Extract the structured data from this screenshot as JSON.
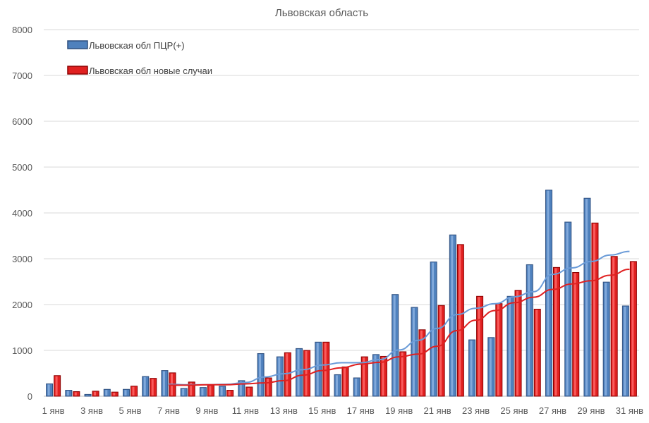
{
  "chart_data": {
    "type": "bar",
    "title": "Львовская область",
    "xlabel": "",
    "ylabel": "",
    "ylim": [
      0,
      8000
    ],
    "yticks": [
      0,
      1000,
      2000,
      3000,
      4000,
      5000,
      6000,
      7000,
      8000
    ],
    "grid": true,
    "legend_position": "top-left",
    "categories": [
      "1 янв",
      "2 янв",
      "3 янв",
      "4 янв",
      "5 янв",
      "6 янв",
      "7 янв",
      "8 янв",
      "9 янв",
      "10 янв",
      "11 янв",
      "12 янв",
      "13 янв",
      "14 янв",
      "15 янв",
      "16 янв",
      "17 янв",
      "18 янв",
      "19 янв",
      "20 янв",
      "21 янв",
      "22 янв",
      "23 янв",
      "24 янв",
      "25 янв",
      "26 янв",
      "27 янв",
      "28 янв",
      "29 янв",
      "30 янв",
      "31 янв"
    ],
    "tick_labels": [
      "1 янв",
      "3 янв",
      "5 янв",
      "7 янв",
      "9 янв",
      "11 янв",
      "13 янв",
      "15 янв",
      "17 янв",
      "19 янв",
      "21 янв",
      "23 янв",
      "25 янв",
      "27 янв",
      "29 янв",
      "31 янв"
    ],
    "series": [
      {
        "name": "Львовская обл ПЦР(+)",
        "color": "#4f81bd",
        "trend_color": "#6a9bd8",
        "values": [
          270,
          130,
          40,
          150,
          150,
          430,
          560,
          170,
          190,
          220,
          340,
          930,
          860,
          1040,
          1180,
          470,
          400,
          910,
          2220,
          1940,
          2930,
          3520,
          1230,
          1280,
          2180,
          2870,
          4500,
          3800,
          4320,
          2490,
          1970
        ],
        "trend": [
          null,
          null,
          null,
          null,
          null,
          null,
          260,
          250,
          250,
          260,
          300,
          420,
          490,
          580,
          680,
          730,
          730,
          800,
          1010,
          1220,
          1480,
          1780,
          1920,
          2020,
          2170,
          2280,
          2660,
          2800,
          2940,
          3080,
          3160
        ]
      },
      {
        "name": "Львовская обл новые случаи",
        "color": "#e02020",
        "trend_color": "#e02020",
        "values": [
          450,
          100,
          110,
          90,
          220,
          390,
          510,
          310,
          240,
          130,
          200,
          400,
          950,
          1000,
          1180,
          640,
          860,
          870,
          970,
          1450,
          1980,
          3310,
          2180,
          2020,
          2310,
          1900,
          2810,
          2700,
          3780,
          3050,
          2940
        ],
        "trend": [
          null,
          null,
          null,
          null,
          null,
          null,
          240,
          240,
          250,
          250,
          270,
          290,
          340,
          460,
          560,
          620,
          700,
          740,
          860,
          920,
          1090,
          1430,
          1660,
          1870,
          2040,
          2160,
          2330,
          2450,
          2520,
          2640,
          2770
        ]
      }
    ]
  }
}
